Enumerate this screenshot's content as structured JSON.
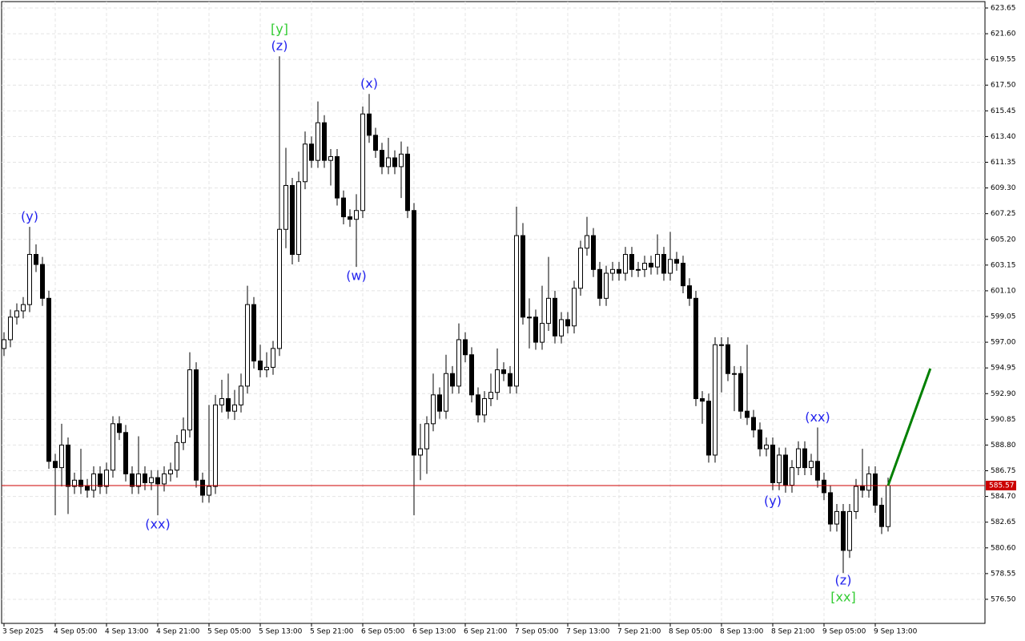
{
  "chart_data": {
    "type": "candlestick",
    "bull_color": "#ffffff",
    "bear_color": "#000000",
    "grid": true,
    "xlim": [
      -0.375,
      153.125
    ],
    "xticks": [
      {
        "value": 0,
        "label": "3 Sep 2025"
      },
      {
        "value": 8,
        "label": "4 Sep 05:00"
      },
      {
        "value": 16,
        "label": "4 Sep 13:00"
      },
      {
        "value": 24,
        "label": "4 Sep 21:00"
      },
      {
        "value": 32,
        "label": "5 Sep 05:00"
      },
      {
        "value": 40,
        "label": "5 Sep 13:00"
      },
      {
        "value": 48,
        "label": "5 Sep 21:00"
      },
      {
        "value": 56,
        "label": "6 Sep 05:00"
      },
      {
        "value": 64,
        "label": "6 Sep 13:00"
      },
      {
        "value": 72,
        "label": "6 Sep 21:00"
      },
      {
        "value": 80,
        "label": "7 Sep 05:00"
      },
      {
        "value": 88,
        "label": "7 Sep 13:00"
      },
      {
        "value": 96,
        "label": "7 Sep 21:00"
      },
      {
        "value": 104,
        "label": "8 Sep 05:00"
      },
      {
        "value": 112,
        "label": "8 Sep 13:00"
      },
      {
        "value": 120,
        "label": "8 Sep 21:00"
      },
      {
        "value": 128,
        "label": "9 Sep 05:00"
      },
      {
        "value": 136,
        "label": "9 Sep 13:00"
      }
    ],
    "ylim": [
      574.58,
      624.16
    ],
    "yticks": [
      623.65,
      {
        "value": 621.6,
        "label": "621.60"
      },
      619.55,
      {
        "value": 617.5,
        "label": "617.50"
      },
      615.45,
      {
        "value": 613.4,
        "label": "613.40"
      },
      611.35,
      {
        "value": 609.3,
        "label": "609.30"
      },
      607.25,
      {
        "value": 605.2,
        "label": "605.20"
      },
      603.15,
      {
        "value": 601.1,
        "label": "601.10"
      },
      599.05,
      {
        "value": 597,
        "label": "597.00"
      },
      594.95,
      {
        "value": 592.9,
        "label": "592.90"
      },
      590.85,
      {
        "value": 588.8,
        "label": "588.80"
      },
      586.75,
      {
        "value": 584.7,
        "label": "584.70"
      },
      582.65,
      {
        "value": 580.6,
        "label": "580.60"
      },
      578.55,
      {
        "value": 576.5,
        "label": "576.50"
      }
    ],
    "open": [
      596.5,
      597.2,
      599,
      599.5,
      600,
      604,
      603.2,
      600.5,
      587.5,
      587,
      588.8,
      585.5,
      586,
      585.5,
      585.2,
      586.5,
      585.5,
      586.8,
      590.5,
      589.8,
      586.5,
      585.5,
      586.5,
      585.8,
      586.2,
      585.7,
      586.5,
      586.8,
      589,
      590,
      594.8,
      586,
      584.8,
      585.5,
      592,
      592.5,
      591.5,
      592,
      593.5,
      600,
      595.5,
      594.8,
      595,
      596.5,
      606,
      609.5,
      604,
      609.8,
      612.8,
      611.5,
      614.5,
      611.5,
      611.8,
      608.5,
      607,
      606.8,
      607.5,
      615.2,
      613.5,
      612.3,
      611,
      611.7,
      611,
      612,
      607.5,
      588,
      588.5,
      590.5,
      592.8,
      591.5,
      594.5,
      593.5,
      597.2,
      596,
      592.8,
      591.2,
      592.5,
      593,
      594.8,
      594.5,
      593.5,
      605.5,
      599,
      599,
      597,
      598.5,
      600.5,
      597.5,
      598.8,
      598.3,
      601.3,
      604.5,
      605.5,
      602.8,
      600.5,
      602.5,
      602.8,
      602.5,
      604,
      602.8,
      602.8,
      603.3,
      603,
      604,
      602.5,
      603.6,
      603.3,
      601.5,
      600.5,
      592.5,
      592.3,
      588,
      596.8,
      596.8,
      594.5,
      594.5,
      591.5,
      591,
      590,
      588.5,
      588.8,
      585.8,
      588,
      585.6,
      587,
      588.5,
      587,
      587.5,
      586,
      585,
      582.5,
      583.5,
      580.4,
      583.5,
      585.5,
      585.2,
      586.5,
      584,
      582.3
    ],
    "high": [
      597.8,
      599.6,
      600.1,
      600.6,
      606.2,
      604.8,
      603.8,
      601.1,
      588.1,
      590.5,
      589.4,
      586.6,
      588.5,
      586.1,
      587.1,
      587.1,
      587.4,
      591.1,
      591.1,
      590.4,
      587.1,
      589.5,
      587.1,
      586.8,
      586.8,
      587.1,
      587.4,
      589.6,
      591,
      596.2,
      595.4,
      586.6,
      592,
      592.8,
      594,
      594.5,
      593.2,
      594.5,
      601.5,
      600.6,
      596.8,
      596.2,
      597.1,
      619.8,
      612.5,
      610.1,
      610.6,
      613.8,
      613.4,
      616.2,
      615.1,
      612.4,
      612.4,
      609.1,
      607.6,
      608.8,
      615.8,
      616.8,
      614.1,
      612.9,
      613.3,
      612.3,
      613,
      612.6,
      608.1,
      590.5,
      591.1,
      594.5,
      593.4,
      596,
      595.1,
      598.5,
      597.8,
      596.6,
      593.4,
      593.1,
      594.5,
      596.5,
      595.4,
      595.1,
      607.8,
      606.5,
      600.5,
      599.6,
      601.5,
      603.8,
      601.1,
      599.4,
      599.4,
      601.9,
      605.1,
      607,
      606.1,
      603.4,
      603.1,
      603.4,
      603.4,
      604.6,
      604.6,
      603.4,
      603.9,
      603.9,
      605.6,
      604.6,
      605.8,
      604.2,
      603.9,
      602.1,
      601.1,
      593.1,
      592.9,
      597.4,
      597.4,
      597.4,
      595.1,
      595.1,
      596.8,
      591.6,
      590.6,
      589.4,
      589.4,
      588.6,
      588.6,
      587.6,
      589.1,
      589.1,
      588.1,
      590.2,
      586.6,
      585.6,
      584.1,
      584.1,
      584.1,
      586.1,
      588.5,
      587.1,
      587.1,
      584.6,
      586.2
    ],
    "low": [
      595.9,
      596.6,
      598.4,
      598.9,
      599.4,
      602.6,
      599.9,
      586.9,
      583.2,
      585.5,
      583.3,
      584.9,
      584.9,
      584.6,
      584.6,
      584.9,
      584.9,
      586.2,
      589.2,
      585.9,
      584.9,
      584.9,
      585.2,
      585.2,
      583.2,
      585.1,
      585.9,
      586.2,
      588.4,
      589.4,
      585.4,
      584.2,
      584.2,
      584.9,
      591.4,
      590.9,
      590.8,
      591.4,
      592.9,
      594.9,
      594.2,
      594.2,
      594.4,
      595.9,
      604.5,
      603.2,
      603.4,
      609.2,
      610.9,
      610.9,
      610.9,
      609.5,
      607.9,
      606.4,
      606.2,
      603,
      606.9,
      612.9,
      611.7,
      610.4,
      610.4,
      610.4,
      608.5,
      606.9,
      583.2,
      586,
      586.5,
      589.9,
      590.9,
      590.9,
      592.9,
      592.9,
      595.4,
      592.2,
      590.6,
      590.6,
      591.9,
      592.4,
      593.9,
      592.9,
      592.9,
      598.4,
      596.5,
      596.4,
      596.4,
      597.9,
      596.9,
      596.9,
      597.7,
      597.7,
      600.7,
      603.9,
      602.2,
      599.9,
      599.9,
      601.9,
      601.9,
      601.9,
      602.2,
      602.2,
      602.2,
      602.4,
      602.4,
      601.9,
      601.9,
      602.7,
      600.9,
      599.9,
      591.9,
      590.5,
      587.4,
      587.4,
      593,
      593.9,
      591.5,
      590.9,
      590.4,
      589.4,
      587.9,
      587.9,
      585.2,
      585.2,
      585,
      585,
      586.4,
      586.4,
      586.4,
      585.4,
      584.4,
      581.9,
      581.9,
      578.6,
      579.8,
      582.9,
      584.6,
      584.6,
      583.4,
      581.7,
      581.9
    ],
    "close": [
      597.2,
      599,
      599.5,
      600,
      604,
      603.2,
      600.5,
      587.5,
      587,
      588.8,
      585.5,
      586,
      585.5,
      585.2,
      586.5,
      585.5,
      586.8,
      590.5,
      589.8,
      586.5,
      585.5,
      586.5,
      585.8,
      586.2,
      585.7,
      586.5,
      586.8,
      589,
      590,
      594.8,
      586,
      584.8,
      585.5,
      592,
      592.5,
      591.5,
      592,
      593.5,
      600,
      595.5,
      594.8,
      595,
      596.5,
      606,
      609.5,
      604,
      609.8,
      612.8,
      611.5,
      614.5,
      611.5,
      611.8,
      608.5,
      607,
      606.8,
      607.5,
      615.2,
      613.5,
      612.3,
      611,
      611.7,
      611,
      612,
      607.5,
      588,
      588.5,
      590.5,
      592.8,
      591.5,
      594.5,
      593.5,
      597.2,
      596,
      592.8,
      591.2,
      592.5,
      593,
      594.8,
      594.5,
      593.5,
      605.5,
      599,
      599,
      597,
      598.5,
      600.5,
      597.5,
      598.8,
      598.3,
      601.3,
      604.5,
      605.5,
      602.8,
      600.5,
      602.5,
      602.8,
      602.5,
      604,
      602.8,
      602.8,
      603.3,
      603,
      604,
      602.5,
      603.6,
      603.3,
      601.5,
      600.5,
      592.5,
      592.3,
      588,
      596.8,
      596.8,
      594.5,
      594.5,
      591.5,
      591,
      590,
      588.5,
      588.8,
      585.8,
      588,
      585.6,
      587,
      588.5,
      587,
      587.5,
      586,
      585,
      582.5,
      583.5,
      580.4,
      583.5,
      585.5,
      585.2,
      586.5,
      584,
      582.3,
      585.57
    ],
    "current_price": 585.57,
    "current_price_color": "#cc0000",
    "projection": {
      "x": [
        138,
        144.6
      ],
      "y": [
        585.57,
        594.9
      ],
      "color": "#008000"
    },
    "annotations": [
      {
        "text": "(y)",
        "color": "#2222ee"
      },
      {
        "text": "[y]",
        "color": "#33cc33"
      },
      {
        "text": "(z)",
        "color": "#2222ee"
      },
      {
        "text": "(x)",
        "color": "#2222ee"
      },
      {
        "text": "(w)",
        "color": "#2222ee"
      },
      {
        "text": "(xx)",
        "color": "#2222ee"
      },
      {
        "text": "(y)",
        "color": "#2222ee"
      },
      {
        "text": "(xx)",
        "color": "#2222ee"
      },
      {
        "text": "(z)",
        "color": "#2222ee"
      },
      {
        "text": "[xx]",
        "color": "#33cc33"
      }
    ]
  }
}
